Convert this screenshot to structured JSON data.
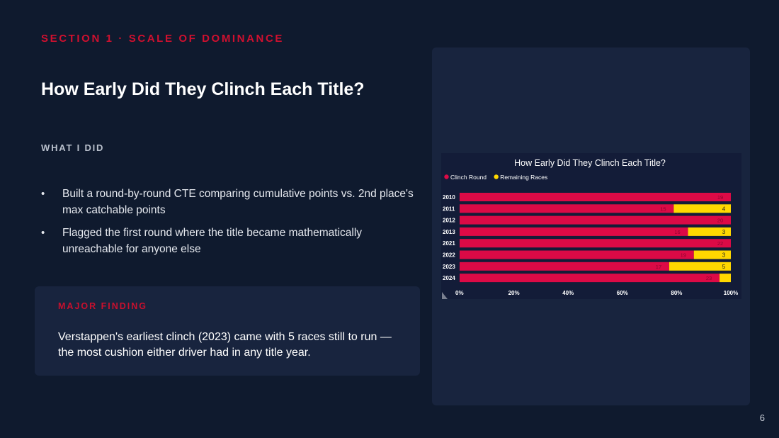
{
  "slide": {
    "section": "SECTION 1 · SCALE OF DOMINANCE",
    "title": "How Early Did They Clinch Each Title?",
    "subhead": "WHAT I DID",
    "bullets": [
      "Built a round-by-round CTE comparing cumulative points vs. 2nd place's max catchable points",
      "Flagged the first round where the title became mathematically unreachable for anyone else"
    ],
    "finding": {
      "label": "MAJOR FINDING",
      "text": "Verstappen's earliest clinch (2023) came with 5 races still to run — the most cushion either driver had in any title year."
    },
    "page_number": "6"
  },
  "colors": {
    "background": "#0f1a2e",
    "accent_red": "#d0102f",
    "clinch": "#dc0a46",
    "remaining": "#ffd800"
  },
  "chart_data": {
    "type": "bar",
    "orientation": "horizontal",
    "stacked": "percent",
    "title": "How Early Did They Clinch Each Title?",
    "legend_position": "top-left",
    "categories": [
      "2010",
      "2011",
      "2012",
      "2013",
      "2021",
      "2022",
      "2023",
      "2024"
    ],
    "series": [
      {
        "name": "Clinch Round",
        "values": [
          19,
          15,
          20,
          16,
          22,
          19,
          17,
          23
        ],
        "color": "#dc0a46"
      },
      {
        "name": "Remaining Races",
        "values": [
          0,
          4,
          0,
          3,
          0,
          3,
          5,
          1
        ],
        "color": "#ffd800"
      }
    ],
    "data_labels": {
      "clinch": [
        "19",
        "15",
        "20",
        "16",
        "22",
        "19",
        "17",
        "23"
      ],
      "remaining": [
        "",
        "4",
        "",
        "3",
        "",
        "3",
        "5",
        ""
      ]
    },
    "xticks": [
      "0%",
      "20%",
      "40%",
      "60%",
      "80%",
      "100%"
    ],
    "xlim": [
      0,
      100
    ]
  }
}
